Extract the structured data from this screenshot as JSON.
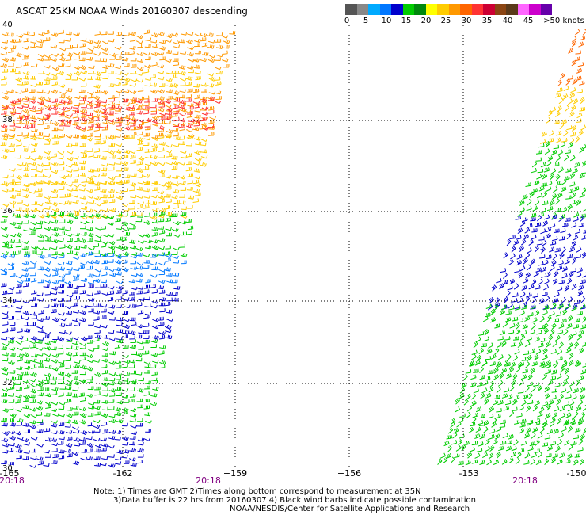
{
  "title": "ASCAT 25KM NOAA Winds 20160307 descending",
  "color_scale": {
    "colors": [
      "#555555",
      "#888888",
      "#00aaff",
      "#0077ff",
      "#0000cc",
      "#00cc00",
      "#00880c",
      "#ffff00",
      "#ffcc00",
      "#ff9900",
      "#ff6600",
      "#ff3333",
      "#cc0033",
      "#8b4513",
      "#5a3a1a",
      "#ff66ff",
      "#cc00cc",
      "#6600aa"
    ],
    "labels": [
      "0",
      "5",
      "10",
      "15",
      "20",
      "25",
      "30",
      "35",
      "40",
      "45",
      ">50 knots"
    ]
  },
  "latitudes": [
    "40",
    "38",
    "36",
    "34",
    "32",
    "30"
  ],
  "longitudes": [
    "-165",
    "-162",
    "−159",
    "−156",
    "-153",
    "-150"
  ],
  "pass_times": [
    "20:18",
    "20:18",
    "20:18"
  ],
  "notes": {
    "line1": "Note: 1) Times are GMT 2)Times along bottom correspond to measurement at 35N",
    "line2": "3)Data buffer is 22 hrs from 20160307 4) Black wind barbs indicate possible contamination",
    "line3": "NOAA/NESDIS/Center for Satellite Applications and Research"
  },
  "swaths": [
    {
      "name": "west-swath",
      "bands": [
        {
          "lat": [
            39.8,
            39.0
          ],
          "color": "#ff9900"
        },
        {
          "lat": [
            39.0,
            38.6
          ],
          "color": "#ffcc00"
        },
        {
          "lat": [
            38.6,
            37.6
          ],
          "color": "#ff9900"
        },
        {
          "lat": [
            38.4,
            37.8
          ],
          "color": "#ff3333"
        },
        {
          "lat": [
            37.6,
            36.6
          ],
          "color": "#ffcc00"
        },
        {
          "lat": [
            36.6,
            35.9
          ],
          "color": "#ffcc00"
        },
        {
          "lat": [
            35.9,
            35.0
          ],
          "color": "#00cc00"
        },
        {
          "lat": [
            35.0,
            34.3
          ],
          "color": "#0077ff"
        },
        {
          "lat": [
            34.3,
            33.0
          ],
          "color": "#0000cc"
        },
        {
          "lat": [
            33.0,
            32.0
          ],
          "color": "#00cc00"
        },
        {
          "lat": [
            32.0,
            31.0
          ],
          "color": "#00cc00"
        },
        {
          "lat": [
            31.0,
            30.0
          ],
          "color": "#0000cc"
        }
      ]
    },
    {
      "name": "east-swath",
      "bands": [
        {
          "lat": [
            39.8,
            38.6
          ],
          "color": "#ff6600"
        },
        {
          "lat": [
            38.6,
            37.4
          ],
          "color": "#ffcc00"
        },
        {
          "lat": [
            37.4,
            35.8
          ],
          "color": "#00cc00"
        },
        {
          "lat": [
            35.8,
            33.8
          ],
          "color": "#0000cc"
        },
        {
          "lat": [
            33.8,
            32.4
          ],
          "color": "#00cc00"
        },
        {
          "lat": [
            32.4,
            31.0
          ],
          "color": "#00cc00"
        },
        {
          "lat": [
            31.0,
            30.0
          ],
          "color": "#00cc00"
        }
      ]
    }
  ]
}
